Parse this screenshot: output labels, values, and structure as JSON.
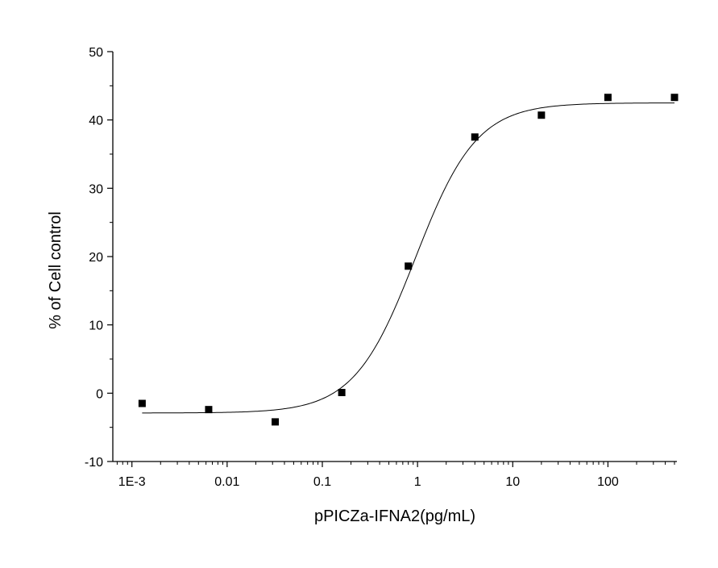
{
  "chart_data": {
    "type": "scatter",
    "title": "",
    "xlabel": "pPICZa-IFNA2(pg/mL)",
    "ylabel": "% of Cell control",
    "x_scale": "log",
    "xlim": [
      0.00063,
      530
    ],
    "ylim": [
      -10,
      50
    ],
    "x_ticks": [
      {
        "value": 0.001,
        "label": "1E-3"
      },
      {
        "value": 0.01,
        "label": "0.01"
      },
      {
        "value": 0.1,
        "label": "0.1"
      },
      {
        "value": 1,
        "label": "1"
      },
      {
        "value": 10,
        "label": "10"
      },
      {
        "value": 100,
        "label": "100"
      }
    ],
    "y_ticks": [
      -10,
      0,
      10,
      20,
      30,
      40,
      50
    ],
    "grid": false,
    "legend": "none",
    "points": [
      {
        "x": 0.00128,
        "y": -1.5
      },
      {
        "x": 0.0064,
        "y": -2.4
      },
      {
        "x": 0.032,
        "y": -4.2
      },
      {
        "x": 0.16,
        "y": 0.1
      },
      {
        "x": 0.8,
        "y": 18.6
      },
      {
        "x": 4.0,
        "y": 37.5
      },
      {
        "x": 20,
        "y": 40.7
      },
      {
        "x": 100,
        "y": 43.3
      },
      {
        "x": 500,
        "y": 43.3
      }
    ],
    "fit_curve": {
      "model": "four-parameter logistic",
      "bottom": -2.9,
      "top": 42.5,
      "ec50": 0.95,
      "hill": 1.35,
      "x_range": [
        0.00128,
        500
      ]
    },
    "marker_color": "#000000",
    "line_color": "#000000"
  }
}
